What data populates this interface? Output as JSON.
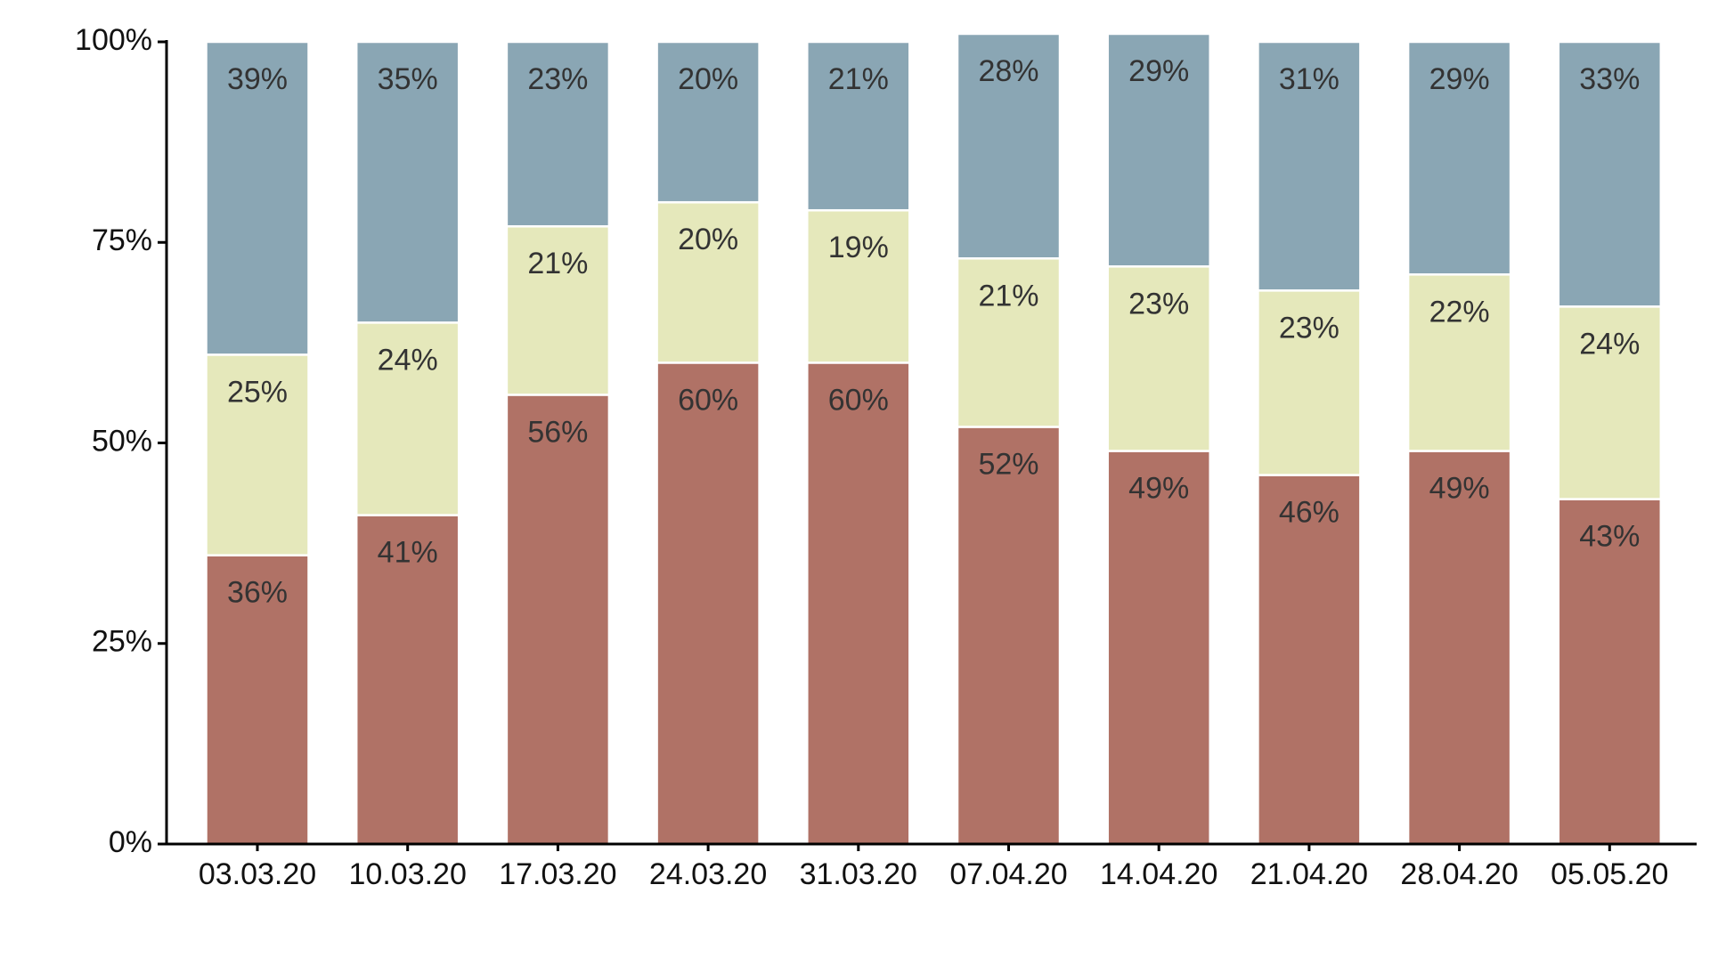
{
  "chart_data": {
    "type": "stacked_bar",
    "categories": [
      "03.03.20",
      "10.03.20",
      "17.03.20",
      "24.03.20",
      "31.03.20",
      "07.04.20",
      "14.04.20",
      "21.04.20",
      "28.04.20",
      "05.05.20"
    ],
    "series": [
      {
        "color": "#b07266",
        "values": [
          36,
          41,
          56,
          60,
          60,
          52,
          49,
          46,
          49,
          43
        ],
        "value_labels": [
          "36%",
          "41%",
          "56%",
          "60%",
          "60%",
          "52%",
          "49%",
          "46%",
          "49%",
          "43%"
        ]
      },
      {
        "color": "#e5e8bb",
        "values": [
          25,
          24,
          21,
          20,
          19,
          21,
          23,
          23,
          22,
          24
        ],
        "value_labels": [
          "25%",
          "24%",
          "21%",
          "20%",
          "19%",
          "21%",
          "23%",
          "23%",
          "22%",
          "24%"
        ]
      },
      {
        "color": "#8aa6b4",
        "values": [
          39,
          35,
          23,
          20,
          21,
          28,
          29,
          31,
          29,
          33
        ],
        "value_labels": [
          "39%",
          "35%",
          "23%",
          "20%",
          "21%",
          "28%",
          "29%",
          "31%",
          "29%",
          "33%"
        ]
      }
    ],
    "ylim": [
      0,
      100
    ],
    "yticks": [
      {
        "value": 0,
        "label": "0%"
      },
      {
        "value": 25,
        "label": "25%"
      },
      {
        "value": 50,
        "label": "50%"
      },
      {
        "value": 75,
        "label": "75%"
      },
      {
        "value": 100,
        "label": "100%"
      }
    ],
    "grid": false
  }
}
